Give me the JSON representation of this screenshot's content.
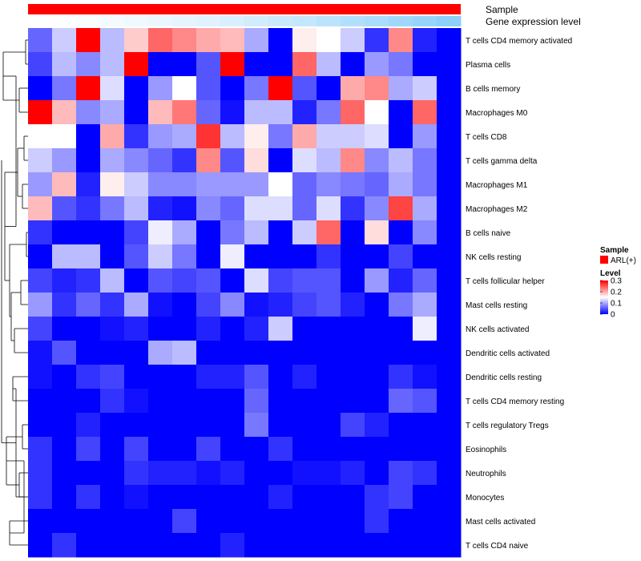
{
  "chart_data": {
    "type": "heatmap",
    "title": "",
    "annotation_tracks": [
      {
        "name": "Sample",
        "label": "Sample",
        "color": "#ff0000"
      },
      {
        "name": "Gene expression level",
        "label": "Gene expression level",
        "values": [
          0.0,
          0.02,
          0.05,
          0.09,
          0.13,
          0.17,
          0.22,
          0.27,
          0.32,
          0.38,
          0.44,
          0.5,
          0.57,
          0.64,
          0.71,
          0.79,
          0.87,
          0.95
        ],
        "low_color": "#ffffff",
        "high_color": "#87cefa"
      }
    ],
    "rows": [
      "T cells CD4 memory activated",
      "Plasma cells",
      "B cells memory",
      "Macrophages M0",
      "T cells CD8",
      "T cells gamma delta",
      "Macrophages M1",
      "Macrophages M2",
      "B cells naive",
      "NK cells resting",
      "T cells follicular helper",
      "Mast cells resting",
      "NK cells activated",
      "Dendritic cells activated",
      "Dendritic cells resting",
      "T cells CD4 memory resting",
      "T cells regulatory  Tregs",
      "Eosinophils",
      "Neutrophils",
      "Monocytes",
      "Mast cells activated",
      "T cells CD4 naive"
    ],
    "columns": 18,
    "values": [
      [
        0.06,
        0.12,
        0.3,
        0.11,
        0.18,
        0.24,
        0.22,
        0.2,
        0.19,
        0.1,
        0.0,
        0.16,
        0.15,
        0.12,
        0.03,
        0.22,
        0.02,
        0.0
      ],
      [
        0.04,
        0.11,
        0.08,
        0.11,
        0.3,
        0.0,
        0.0,
        0.05,
        0.3,
        0.0,
        0.0,
        0.24,
        0.11,
        0.0,
        0.09,
        0.07,
        0.0,
        0.0
      ],
      [
        0.0,
        0.07,
        0.3,
        0.13,
        0.0,
        0.09,
        0.15,
        0.05,
        0.0,
        0.07,
        0.3,
        0.05,
        0.0,
        0.2,
        0.22,
        0.1,
        0.12,
        0.0
      ],
      [
        0.3,
        0.19,
        0.08,
        0.1,
        0.0,
        0.19,
        0.23,
        0.06,
        0.01,
        0.11,
        0.11,
        0.02,
        0.07,
        0.24,
        0.15,
        0.0,
        0.24,
        0.0
      ],
      [
        0.15,
        0.15,
        0.0,
        0.2,
        0.03,
        0.09,
        0.1,
        0.27,
        0.11,
        0.16,
        0.07,
        0.2,
        0.12,
        0.12,
        0.13,
        0.0,
        0.09,
        0.0
      ],
      [
        0.12,
        0.09,
        0.0,
        0.1,
        0.08,
        0.06,
        0.03,
        0.22,
        0.05,
        0.17,
        0.0,
        0.13,
        0.11,
        0.22,
        0.08,
        0.11,
        0.07,
        0.0
      ],
      [
        0.09,
        0.19,
        0.02,
        0.16,
        0.12,
        0.08,
        0.08,
        0.09,
        0.09,
        0.09,
        0.15,
        0.06,
        0.08,
        0.07,
        0.06,
        0.1,
        0.07,
        0.0
      ],
      [
        0.19,
        0.05,
        0.03,
        0.07,
        0.11,
        0.02,
        0.01,
        0.08,
        0.06,
        0.13,
        0.13,
        0.06,
        0.13,
        0.03,
        0.08,
        0.26,
        0.1,
        0.0
      ],
      [
        0.03,
        0.0,
        0.0,
        0.0,
        0.04,
        0.14,
        0.1,
        0.0,
        0.07,
        0.11,
        0.0,
        0.12,
        0.24,
        0.0,
        0.17,
        0.0,
        0.08,
        0.0
      ],
      [
        0.0,
        0.11,
        0.11,
        0.0,
        0.05,
        0.12,
        0.07,
        0.0,
        0.14,
        0.0,
        0.0,
        0.0,
        0.03,
        0.0,
        0.0,
        0.04,
        0.0,
        0.0
      ],
      [
        0.04,
        0.02,
        0.03,
        0.11,
        0.0,
        0.05,
        0.04,
        0.05,
        0.0,
        0.13,
        0.04,
        0.05,
        0.05,
        0.0,
        0.09,
        0.02,
        0.06,
        0.0
      ],
      [
        0.09,
        0.03,
        0.06,
        0.03,
        0.1,
        0.01,
        0.0,
        0.04,
        0.08,
        0.01,
        0.02,
        0.04,
        0.05,
        0.02,
        0.0,
        0.07,
        0.1,
        0.0
      ],
      [
        0.04,
        0.0,
        0.0,
        0.01,
        0.02,
        0.0,
        0.0,
        0.02,
        0.0,
        0.02,
        0.12,
        0.0,
        0.0,
        0.0,
        0.0,
        0.0,
        0.14,
        0.0
      ],
      [
        0.01,
        0.05,
        0.0,
        0.0,
        0.0,
        0.1,
        0.11,
        0.0,
        0.0,
        0.0,
        0.0,
        0.0,
        0.0,
        0.0,
        0.0,
        0.0,
        0.0,
        0.0
      ],
      [
        0.01,
        0.0,
        0.03,
        0.04,
        0.0,
        0.0,
        0.0,
        0.02,
        0.02,
        0.05,
        0.0,
        0.02,
        0.0,
        0.0,
        0.0,
        0.03,
        0.01,
        0.0
      ],
      [
        0.0,
        0.0,
        0.0,
        0.03,
        0.01,
        0.0,
        0.0,
        0.0,
        0.0,
        0.06,
        0.0,
        0.0,
        0.0,
        0.0,
        0.0,
        0.06,
        0.05,
        0.0
      ],
      [
        0.0,
        0.0,
        0.02,
        0.0,
        0.0,
        0.0,
        0.0,
        0.0,
        0.0,
        0.07,
        0.0,
        0.0,
        0.0,
        0.04,
        0.02,
        0.0,
        0.0,
        0.0
      ],
      [
        0.03,
        0.0,
        0.04,
        0.0,
        0.04,
        0.0,
        0.0,
        0.04,
        0.0,
        0.0,
        0.03,
        0.0,
        0.0,
        0.0,
        0.0,
        0.0,
        0.0,
        0.0
      ],
      [
        0.03,
        0.0,
        0.0,
        0.0,
        0.03,
        0.02,
        0.02,
        0.01,
        0.02,
        0.0,
        0.0,
        0.01,
        0.01,
        0.02,
        0.0,
        0.04,
        0.03,
        0.0
      ],
      [
        0.03,
        0.0,
        0.03,
        0.0,
        0.01,
        0.0,
        0.0,
        0.0,
        0.0,
        0.0,
        0.02,
        0.0,
        0.0,
        0.0,
        0.03,
        0.04,
        0.0,
        0.0
      ],
      [
        0.0,
        0.0,
        0.0,
        0.0,
        0.0,
        0.0,
        0.04,
        0.0,
        0.0,
        0.0,
        0.0,
        0.0,
        0.0,
        0.0,
        0.03,
        0.0,
        0.0,
        0.0
      ],
      [
        0.0,
        0.03,
        0.0,
        0.0,
        0.0,
        0.0,
        0.0,
        0.0,
        0.02,
        0.0,
        0.0,
        0.0,
        0.0,
        0.0,
        0.0,
        0.0,
        0.0,
        0.0
      ]
    ],
    "color_scale": {
      "min": 0,
      "max": 0.3,
      "low": "#0000ff",
      "mid": "#ffffff",
      "high": "#ff0000",
      "mid_value": 0.15
    },
    "legend": {
      "sample_title": "Sample",
      "sample_entry": "ARL(+)",
      "sample_color": "#ff0000",
      "level_title": "Level",
      "ticks": [
        0.3,
        0.2,
        0.1,
        0
      ],
      "tick_labels": [
        "0.3",
        "0.2",
        "0.1",
        "0"
      ],
      "placement": "right"
    },
    "row_dendrogram": true
  }
}
